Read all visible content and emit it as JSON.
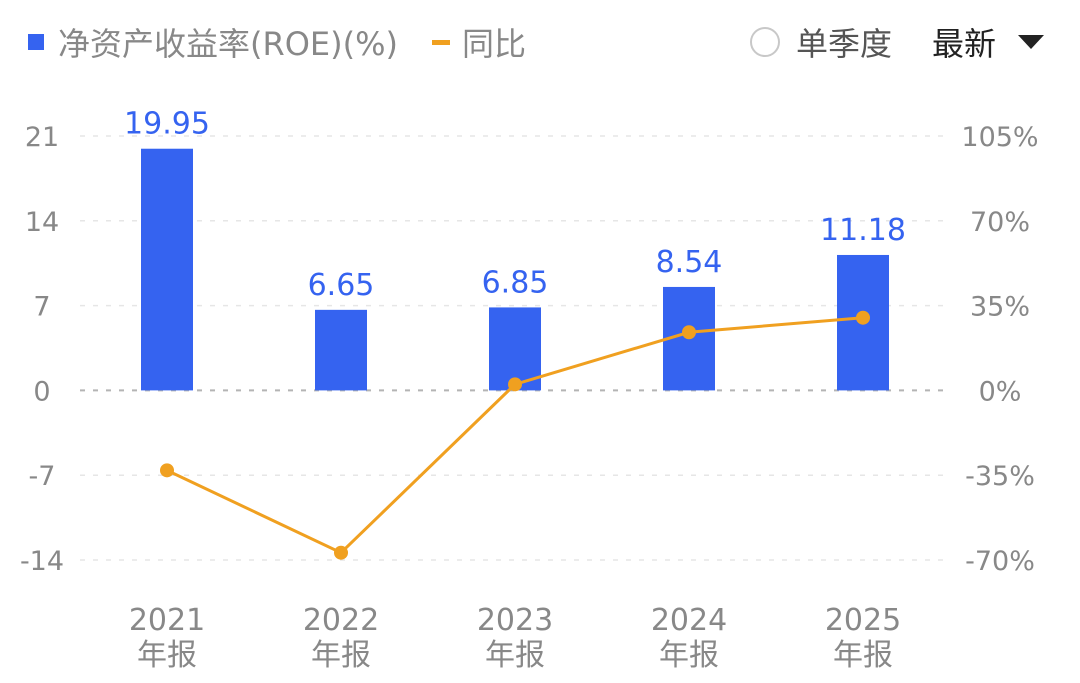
{
  "legend": {
    "bar_label": "净资产收益率(ROE)(%)",
    "line_label": "同比"
  },
  "controls": {
    "single_quarter_label": "单季度",
    "dropdown_value": "最新"
  },
  "colors": {
    "bar": "#3563f0",
    "line": "#f0a020",
    "axis_text": "#888888",
    "grid": "#e6e6e6",
    "zero_line": "#b4b4b4"
  },
  "chart_data": {
    "type": "bar",
    "categories": [
      [
        "2021",
        "年报"
      ],
      [
        "2022",
        "年报"
      ],
      [
        "2023",
        "年报"
      ],
      [
        "2024",
        "年报"
      ],
      [
        "2025",
        "年报"
      ]
    ],
    "series": [
      {
        "name": "净资产收益率(ROE)(%)",
        "type": "bar",
        "axis": "left",
        "values": [
          19.95,
          6.65,
          6.85,
          8.54,
          11.18
        ],
        "labels": [
          "19.95",
          "6.65",
          "6.85",
          "8.54",
          "11.18"
        ]
      },
      {
        "name": "同比",
        "type": "line",
        "axis": "right",
        "values": [
          -33,
          -67,
          2.5,
          24,
          30
        ]
      }
    ],
    "y_left": {
      "ticks": [
        21,
        14,
        7,
        0,
        -7,
        -14
      ],
      "tick_labels": [
        "21",
        "14",
        "7",
        "0",
        "-7",
        "-14"
      ],
      "range": [
        -14,
        21
      ]
    },
    "y_right": {
      "ticks": [
        105,
        70,
        35,
        0,
        -35,
        -70
      ],
      "tick_labels": [
        "105%",
        "70%",
        "35%",
        "0%",
        "-35%",
        "-70%"
      ],
      "range": [
        -70,
        105
      ]
    },
    "grid": true,
    "legend_position": "top-left"
  }
}
